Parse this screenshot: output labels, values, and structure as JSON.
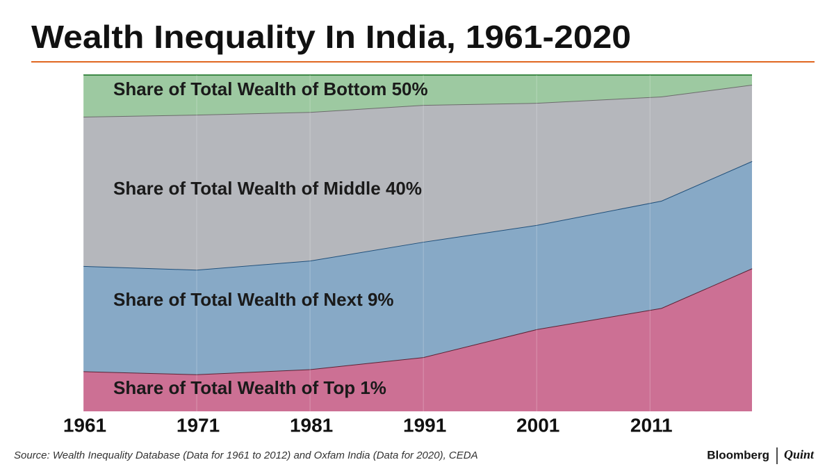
{
  "chart_data": {
    "type": "stacked-area",
    "title": "Wealth Inequality In India, 1961-2020",
    "x": [
      1961,
      1971,
      1981,
      1991,
      2001,
      2012,
      2020
    ],
    "xlim": [
      1961,
      2020
    ],
    "xticks": [
      1961,
      1971,
      1981,
      1991,
      2001,
      2011
    ],
    "ylim": [
      0,
      100
    ],
    "series": [
      {
        "name": "Share of Total Wealth of Top 1%",
        "color": "#cc7094",
        "line": "#5c2234",
        "values": [
          11.9,
          11.0,
          12.5,
          16.1,
          24.4,
          30.7,
          42.5
        ]
      },
      {
        "name": "Share of Total Wealth of Next 9%",
        "color": "#87a9c6",
        "line": "#1f4f7a",
        "values": [
          31.3,
          31.1,
          32.3,
          34.3,
          31.0,
          31.9,
          31.9
        ]
      },
      {
        "name": "Share of Total Wealth of Middle 40%",
        "color": "#b5b7bc",
        "line": "#6b6b6b",
        "values": [
          44.4,
          46.1,
          44.2,
          40.7,
          36.3,
          31.0,
          22.7
        ]
      },
      {
        "name": "Share of Total Wealth of Bottom 50%",
        "color": "#9dc9a1",
        "line": "#3f8a48",
        "values": [
          12.4,
          11.8,
          11.0,
          8.9,
          8.3,
          6.4,
          2.9
        ]
      }
    ],
    "source": "Source: Wealth Inequality Database (Data for 1961 to 2012) and Oxfam India (Data for 2020), CEDA",
    "brand": [
      "Bloomberg",
      "Quint"
    ]
  }
}
